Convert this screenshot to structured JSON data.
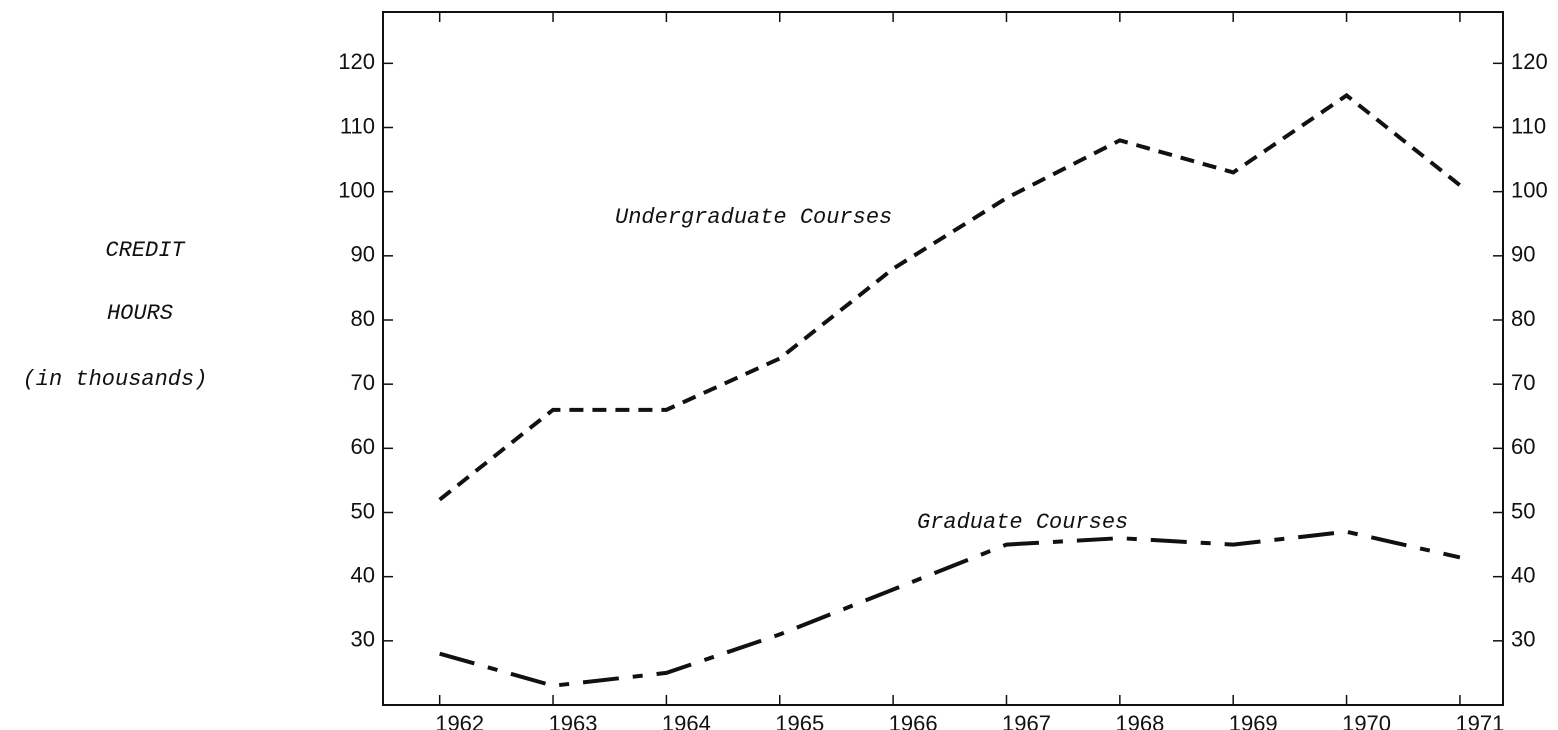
{
  "chart_data": {
    "type": "line",
    "ylabel": [
      "CREDIT",
      "HOURS",
      "(in thousands)"
    ],
    "annotations": [
      "Undergraduate Courses",
      "Graduate Courses"
    ],
    "x": [
      1962,
      1963,
      1964,
      1965,
      1966,
      1967,
      1968,
      1969,
      1970,
      1971
    ],
    "series": [
      {
        "name": "Undergraduate Courses",
        "color": "#111111",
        "line_style": "dashed",
        "values": [
          52,
          66,
          66,
          74,
          88,
          99,
          108,
          103,
          115,
          101
        ]
      },
      {
        "name": "Graduate Courses",
        "color": "#111111",
        "line_style": "dashdot",
        "values": [
          28,
          23,
          25,
          31,
          38,
          45,
          46,
          45,
          47,
          43
        ]
      }
    ],
    "xlim": [
      1961.5,
      1971.38
    ],
    "xticks": [
      1962,
      1963,
      1964,
      1965,
      1966,
      1967,
      1968,
      1969,
      1970,
      1971
    ],
    "ylim": [
      20,
      128
    ],
    "yticks": [
      30,
      40,
      50,
      60,
      70,
      80,
      90,
      100,
      110,
      120
    ],
    "y2lim": [
      20,
      128
    ],
    "y2ticks": [
      30,
      40,
      50,
      60,
      70,
      80,
      90,
      100,
      110,
      120
    ],
    "grid": false
  }
}
